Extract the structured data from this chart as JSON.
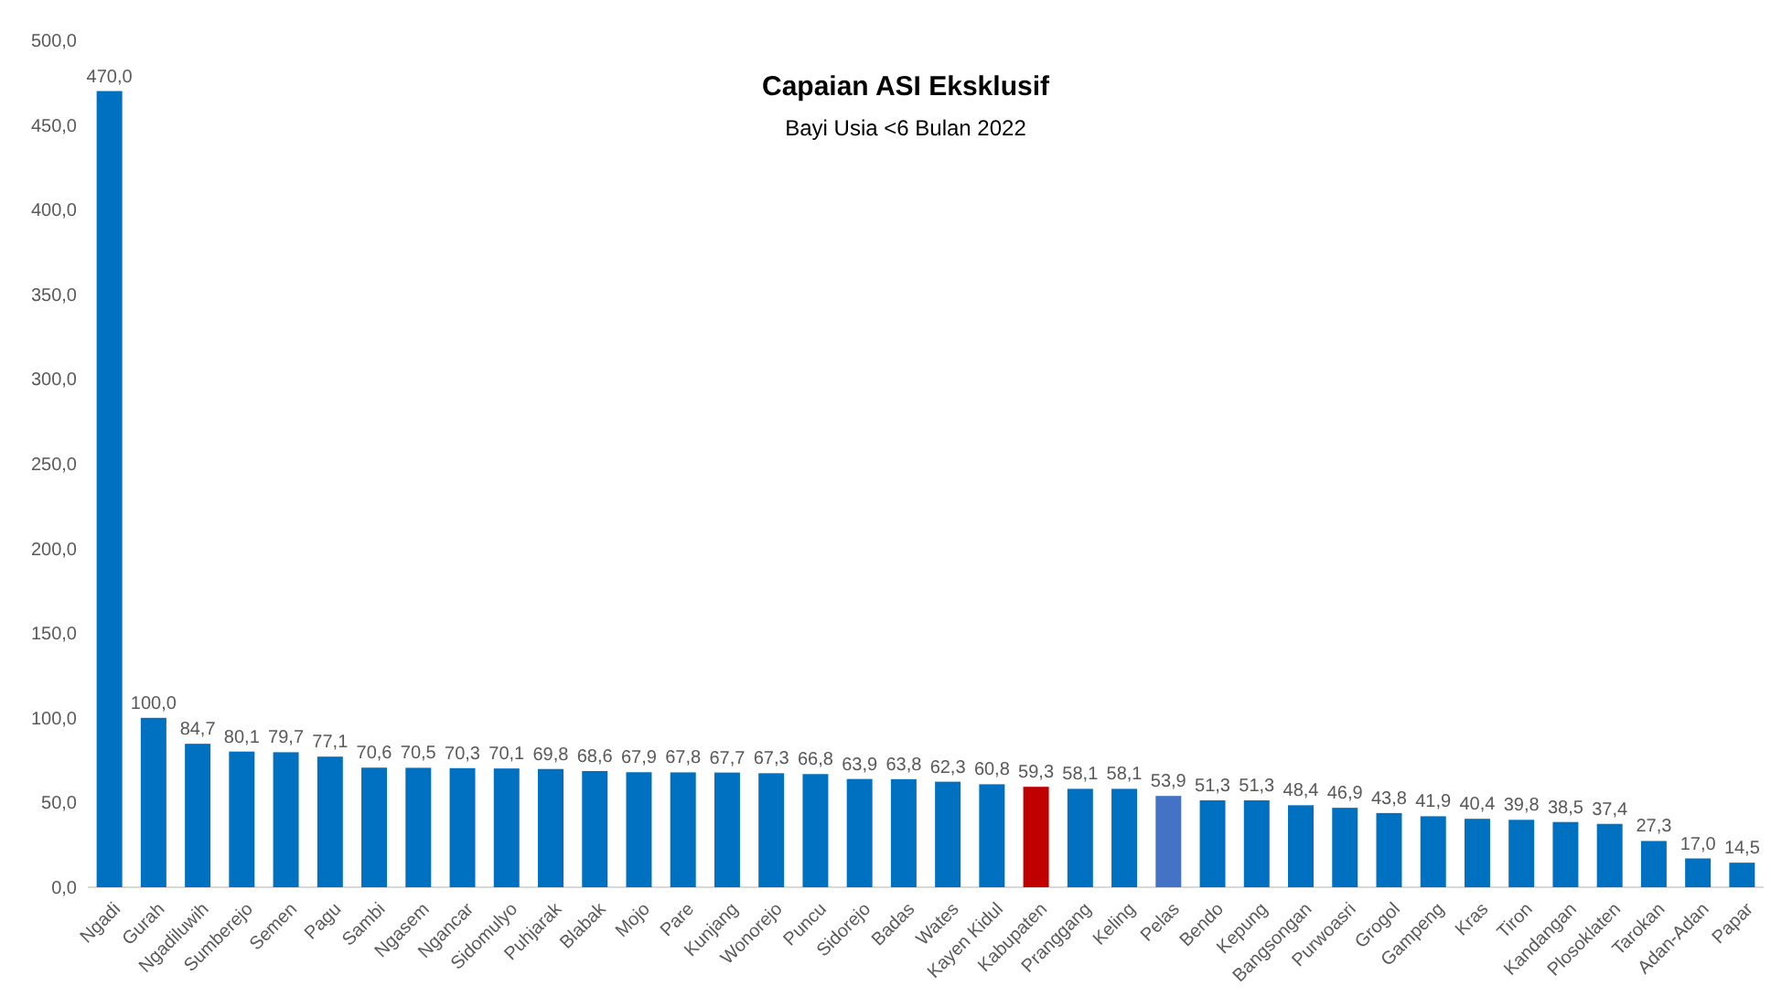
{
  "chart_data": {
    "type": "bar",
    "title": "Capaian ASI Eksklusif",
    "subtitle": "Bayi Usia <6 Bulan 2022",
    "categories": [
      "Ngadi",
      "Gurah",
      "Ngadiluwih",
      "Sumberejo",
      "Semen",
      "Pagu",
      "Sambi",
      "Ngasem",
      "Ngancar",
      "Sidomulyo",
      "Puhjarak",
      "Blabak",
      "Mojo",
      "Pare",
      "Kunjang",
      "Wonorejo",
      "Puncu",
      "Sidorejo",
      "Badas",
      "Wates",
      "Kayen Kidul",
      "Kabupaten",
      "Pranggang",
      "Keling",
      "Pelas",
      "Bendo",
      "Kepung",
      "Bangsongan",
      "Purwoasri",
      "Grogol",
      "Gampeng",
      "Kras",
      "Tiron",
      "Kandangan",
      "Plosoklaten",
      "Tarokan",
      "Adan-Adan",
      "Papar"
    ],
    "values": [
      470.0,
      100.0,
      84.7,
      80.1,
      79.7,
      77.1,
      70.6,
      70.5,
      70.3,
      70.1,
      69.8,
      68.6,
      67.9,
      67.8,
      67.7,
      67.3,
      66.8,
      63.9,
      63.8,
      62.3,
      60.8,
      59.3,
      58.1,
      58.1,
      53.9,
      51.3,
      51.3,
      48.4,
      46.9,
      43.8,
      41.9,
      40.4,
      39.8,
      38.5,
      37.4,
      27.3,
      17.0,
      14.5
    ],
    "value_labels": [
      "470,0",
      "100,0",
      "84,7",
      "80,1",
      "79,7",
      "77,1",
      "70,6",
      "70,5",
      "70,3",
      "70,1",
      "69,8",
      "68,6",
      "67,9",
      "67,8",
      "67,7",
      "67,3",
      "66,8",
      "63,9",
      "63,8",
      "62,3",
      "60,8",
      "59,3",
      "58,1",
      "58,1",
      "53,9",
      "51,3",
      "51,3",
      "48,4",
      "46,9",
      "43,8",
      "41,9",
      "40,4",
      "39,8",
      "38,5",
      "37,4",
      "27,3",
      "17,0",
      "14,5"
    ],
    "colors": [
      "#0070c0",
      "#0070c0",
      "#0070c0",
      "#0070c0",
      "#0070c0",
      "#0070c0",
      "#0070c0",
      "#0070c0",
      "#0070c0",
      "#0070c0",
      "#0070c0",
      "#0070c0",
      "#0070c0",
      "#0070c0",
      "#0070c0",
      "#0070c0",
      "#0070c0",
      "#0070c0",
      "#0070c0",
      "#0070c0",
      "#0070c0",
      "#c00000",
      "#0070c0",
      "#0070c0",
      "#4472c4",
      "#0070c0",
      "#0070c0",
      "#0070c0",
      "#0070c0",
      "#0070c0",
      "#0070c0",
      "#0070c0",
      "#0070c0",
      "#0070c0",
      "#0070c0",
      "#0070c0",
      "#0070c0",
      "#0070c0"
    ],
    "ylim": [
      0,
      500
    ],
    "yticks": [
      {
        "value": 0,
        "label": "0,0"
      },
      {
        "value": 50,
        "label": "50,0"
      },
      {
        "value": 100,
        "label": "100,0"
      },
      {
        "value": 150,
        "label": "150,0"
      },
      {
        "value": 200,
        "label": "200,0"
      },
      {
        "value": 250,
        "label": "250,0"
      },
      {
        "value": 300,
        "label": "300,0"
      },
      {
        "value": 350,
        "label": "350,0"
      },
      {
        "value": 400,
        "label": "400,0"
      },
      {
        "value": 450,
        "label": "450,0"
      },
      {
        "value": 500,
        "label": "500,0"
      }
    ],
    "grid": false
  }
}
